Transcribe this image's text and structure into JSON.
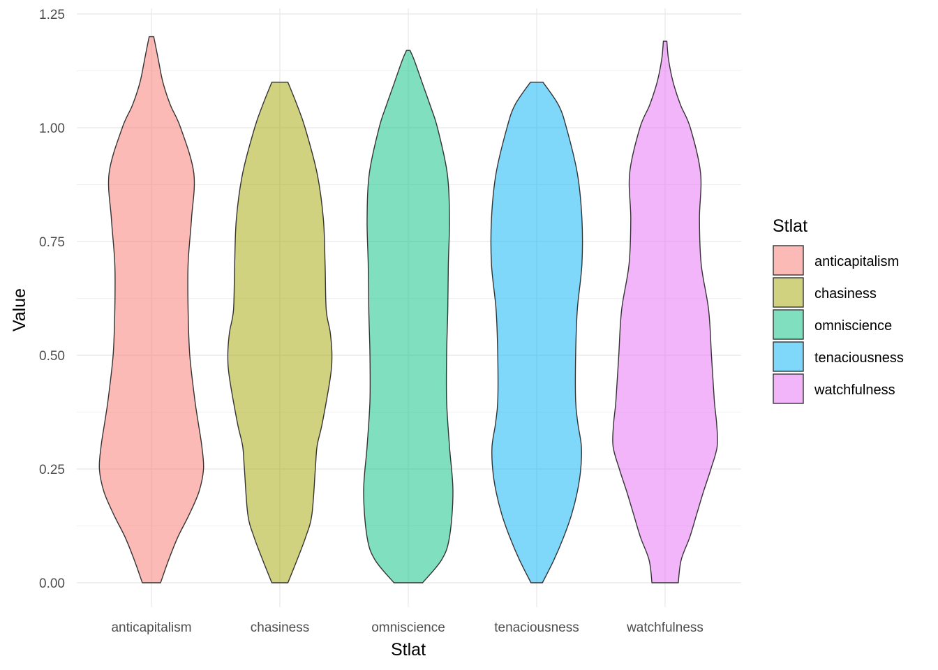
{
  "chart_data": {
    "type": "violin",
    "xlabel": "Stlat",
    "ylabel": "Value",
    "ylim": [
      0,
      1.25
    ],
    "yticks": [
      "0.00",
      "0.25",
      "0.50",
      "0.75",
      "1.00",
      "1.25"
    ],
    "categories": [
      "anticapitalism",
      "chasiness",
      "omniscience",
      "tenaciousness",
      "watchfulness"
    ],
    "colors": [
      "#F8766D",
      "#A3A500",
      "#00BF7D",
      "#00B0F6",
      "#E76BF3"
    ],
    "fill_opacity": 0.5,
    "grid": true,
    "legend": {
      "title": "Stlat",
      "position": "right"
    },
    "series": [
      {
        "name": "anticapitalism",
        "min": 0.0,
        "max": 1.2,
        "density": [
          [
            0,
            0.16
          ],
          [
            0.05,
            0.3
          ],
          [
            0.1,
            0.46
          ],
          [
            0.15,
            0.66
          ],
          [
            0.2,
            0.83
          ],
          [
            0.25,
            0.91
          ],
          [
            0.3,
            0.88
          ],
          [
            0.35,
            0.82
          ],
          [
            0.4,
            0.76
          ],
          [
            0.5,
            0.67
          ],
          [
            0.6,
            0.64
          ],
          [
            0.7,
            0.64
          ],
          [
            0.8,
            0.7
          ],
          [
            0.9,
            0.74
          ],
          [
            1.0,
            0.51
          ],
          [
            1.05,
            0.33
          ],
          [
            1.1,
            0.2
          ],
          [
            1.15,
            0.12
          ],
          [
            1.2,
            0.04
          ]
        ]
      },
      {
        "name": "chasiness",
        "min": 0.0,
        "max": 1.11,
        "density": [
          [
            0,
            0.14
          ],
          [
            0.05,
            0.3
          ],
          [
            0.1,
            0.45
          ],
          [
            0.15,
            0.56
          ],
          [
            0.25,
            0.62
          ],
          [
            0.3,
            0.65
          ],
          [
            0.35,
            0.74
          ],
          [
            0.45,
            0.88
          ],
          [
            0.5,
            0.91
          ],
          [
            0.55,
            0.88
          ],
          [
            0.6,
            0.81
          ],
          [
            0.7,
            0.79
          ],
          [
            0.8,
            0.76
          ],
          [
            0.9,
            0.65
          ],
          [
            1.0,
            0.44
          ],
          [
            1.05,
            0.3
          ],
          [
            1.1,
            0.14
          ]
        ]
      },
      {
        "name": "omniscience",
        "min": 0.0,
        "max": 1.17,
        "density": [
          [
            0,
            0.25
          ],
          [
            0.05,
            0.58
          ],
          [
            0.1,
            0.72
          ],
          [
            0.2,
            0.78
          ],
          [
            0.3,
            0.72
          ],
          [
            0.4,
            0.67
          ],
          [
            0.5,
            0.67
          ],
          [
            0.6,
            0.69
          ],
          [
            0.7,
            0.7
          ],
          [
            0.8,
            0.72
          ],
          [
            0.9,
            0.68
          ],
          [
            1.0,
            0.51
          ],
          [
            1.05,
            0.38
          ],
          [
            1.1,
            0.24
          ],
          [
            1.15,
            0.1
          ],
          [
            1.17,
            0.03
          ]
        ]
      },
      {
        "name": "tenaciousness",
        "min": 0.0,
        "max": 1.1,
        "density": [
          [
            0,
            0.1
          ],
          [
            0.05,
            0.3
          ],
          [
            0.1,
            0.47
          ],
          [
            0.15,
            0.61
          ],
          [
            0.2,
            0.71
          ],
          [
            0.25,
            0.77
          ],
          [
            0.3,
            0.78
          ],
          [
            0.35,
            0.72
          ],
          [
            0.4,
            0.68
          ],
          [
            0.5,
            0.68
          ],
          [
            0.6,
            0.71
          ],
          [
            0.7,
            0.79
          ],
          [
            0.8,
            0.79
          ],
          [
            0.9,
            0.71
          ],
          [
            1.0,
            0.52
          ],
          [
            1.05,
            0.38
          ],
          [
            1.1,
            0.11
          ]
        ]
      },
      {
        "name": "watchfulness",
        "min": 0.0,
        "max": 1.19,
        "density": [
          [
            0,
            0.23
          ],
          [
            0.05,
            0.28
          ],
          [
            0.1,
            0.43
          ],
          [
            0.15,
            0.55
          ],
          [
            0.2,
            0.67
          ],
          [
            0.25,
            0.8
          ],
          [
            0.3,
            0.91
          ],
          [
            0.35,
            0.9
          ],
          [
            0.4,
            0.86
          ],
          [
            0.5,
            0.81
          ],
          [
            0.6,
            0.76
          ],
          [
            0.7,
            0.63
          ],
          [
            0.8,
            0.6
          ],
          [
            0.9,
            0.62
          ],
          [
            1.0,
            0.44
          ],
          [
            1.05,
            0.27
          ],
          [
            1.1,
            0.14
          ],
          [
            1.15,
            0.06
          ],
          [
            1.19,
            0.03
          ]
        ]
      }
    ]
  }
}
